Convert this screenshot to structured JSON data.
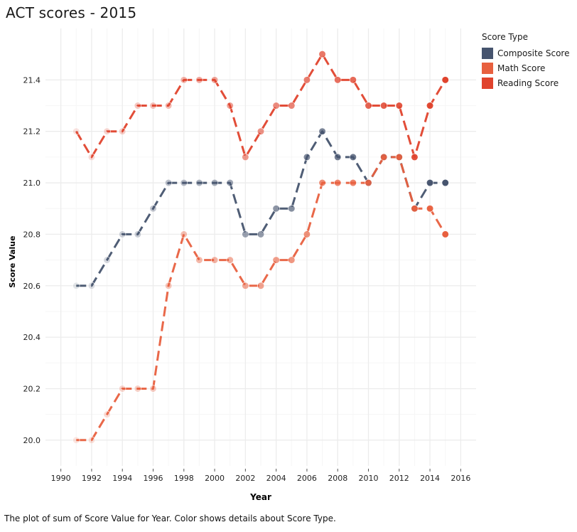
{
  "title": "ACT scores - 2015",
  "caption": "The plot of sum of Score Value for Year.  Color shows details about Score Type.",
  "legend": {
    "title": "Score Type"
  },
  "chart_data": {
    "type": "line",
    "title": "ACT scores - 2015",
    "xlabel": "Year",
    "ylabel": "Score Value",
    "xlim": [
      1989,
      2017
    ],
    "ylim": [
      19.9,
      21.6
    ],
    "xticks": [
      1990,
      1992,
      1994,
      1996,
      1998,
      2000,
      2002,
      2004,
      2006,
      2008,
      2010,
      2012,
      2014,
      2016
    ],
    "yticks": [
      20.0,
      20.2,
      20.4,
      20.6,
      20.8,
      21.0,
      21.2,
      21.4
    ],
    "grid": true,
    "legend_position": "top-right",
    "x": [
      1991,
      1992,
      1993,
      1994,
      1995,
      1996,
      1997,
      1998,
      1999,
      2000,
      2001,
      2002,
      2003,
      2004,
      2005,
      2006,
      2007,
      2008,
      2009,
      2010,
      2011,
      2012,
      2013,
      2014,
      2015
    ],
    "series": [
      {
        "name": "Composite Score",
        "color": "#46546e",
        "values": [
          20.6,
          20.6,
          20.7,
          20.8,
          20.8,
          20.9,
          21.0,
          21.0,
          21.0,
          21.0,
          21.0,
          20.8,
          20.8,
          20.9,
          20.9,
          21.1,
          21.2,
          21.1,
          21.1,
          21.0,
          21.1,
          21.1,
          20.9,
          21.0,
          21.0
        ]
      },
      {
        "name": "Math Score",
        "color": "#e8603f",
        "values": [
          20.0,
          20.0,
          20.1,
          20.2,
          20.2,
          20.2,
          20.6,
          20.8,
          20.7,
          20.7,
          20.7,
          20.6,
          20.6,
          20.7,
          20.7,
          20.8,
          21.0,
          21.0,
          21.0,
          21.0,
          21.1,
          21.1,
          20.9,
          20.9,
          20.8
        ]
      },
      {
        "name": "Reading Score",
        "color": "#e0432d",
        "values": [
          21.2,
          21.1,
          21.2,
          21.2,
          21.3,
          21.3,
          21.3,
          21.4,
          21.4,
          21.4,
          21.3,
          21.1,
          21.2,
          21.3,
          21.3,
          21.4,
          21.5,
          21.4,
          21.4,
          21.3,
          21.3,
          21.3,
          21.1,
          21.3,
          21.4
        ]
      }
    ]
  }
}
